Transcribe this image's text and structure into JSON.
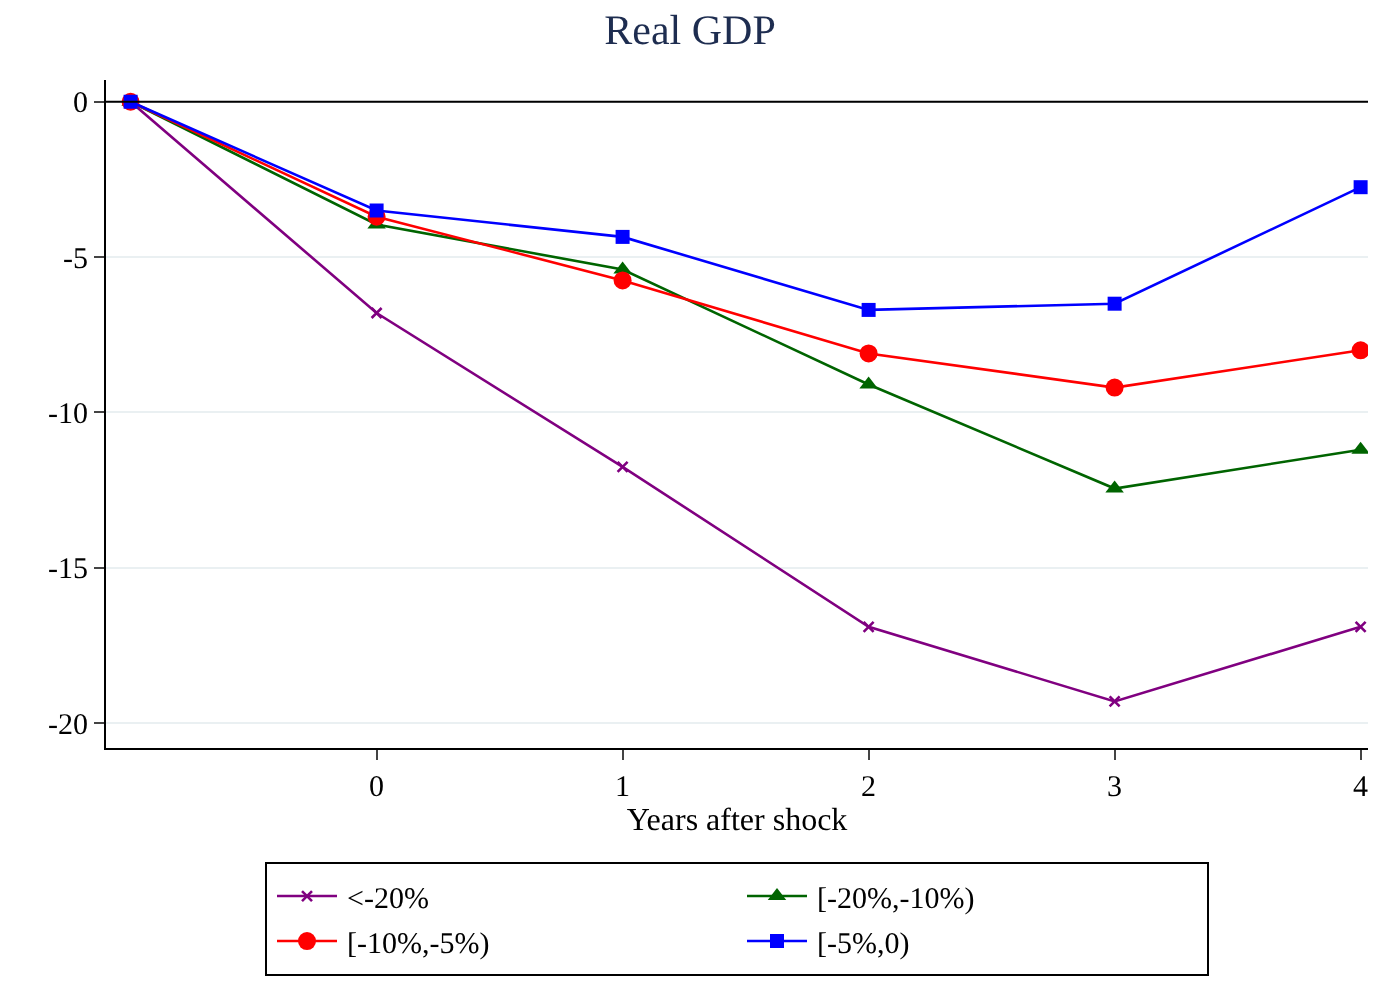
{
  "chart_data": {
    "type": "line",
    "title": "Real GDP",
    "xlabel": "Years after shock",
    "x": [
      -1,
      0,
      1,
      2,
      3,
      4
    ],
    "xlim": [
      -1.1,
      4.03
    ],
    "xticks": [
      0,
      1,
      2,
      3,
      4
    ],
    "ylim": [
      -20.8,
      0.7
    ],
    "yticks": [
      0,
      -5,
      -10,
      -15,
      -20
    ],
    "grid": "y",
    "legend": "bottom",
    "ref_lines": [
      {
        "axis": "y",
        "value": 0,
        "color": "#000000"
      }
    ],
    "series": [
      {
        "name": "<-20%",
        "color": "#800080",
        "marker": "cross",
        "values": [
          0,
          -6.8,
          -11.75,
          -16.9,
          -19.3,
          -16.9
        ]
      },
      {
        "name": "[-20%,-10%)",
        "color": "#006400",
        "marker": "triangle",
        "values": [
          0,
          -3.95,
          -5.4,
          -9.1,
          -12.45,
          -11.2
        ]
      },
      {
        "name": "[-10%,-5%)",
        "color": "#ff0000",
        "marker": "circle",
        "values": [
          0,
          -3.7,
          -5.75,
          -8.1,
          -9.2,
          -8.0
        ]
      },
      {
        "name": "[-5%,0)",
        "color": "#0000ff",
        "marker": "square",
        "values": [
          0,
          -3.5,
          -4.35,
          -6.7,
          -6.5,
          -2.75
        ]
      }
    ]
  }
}
